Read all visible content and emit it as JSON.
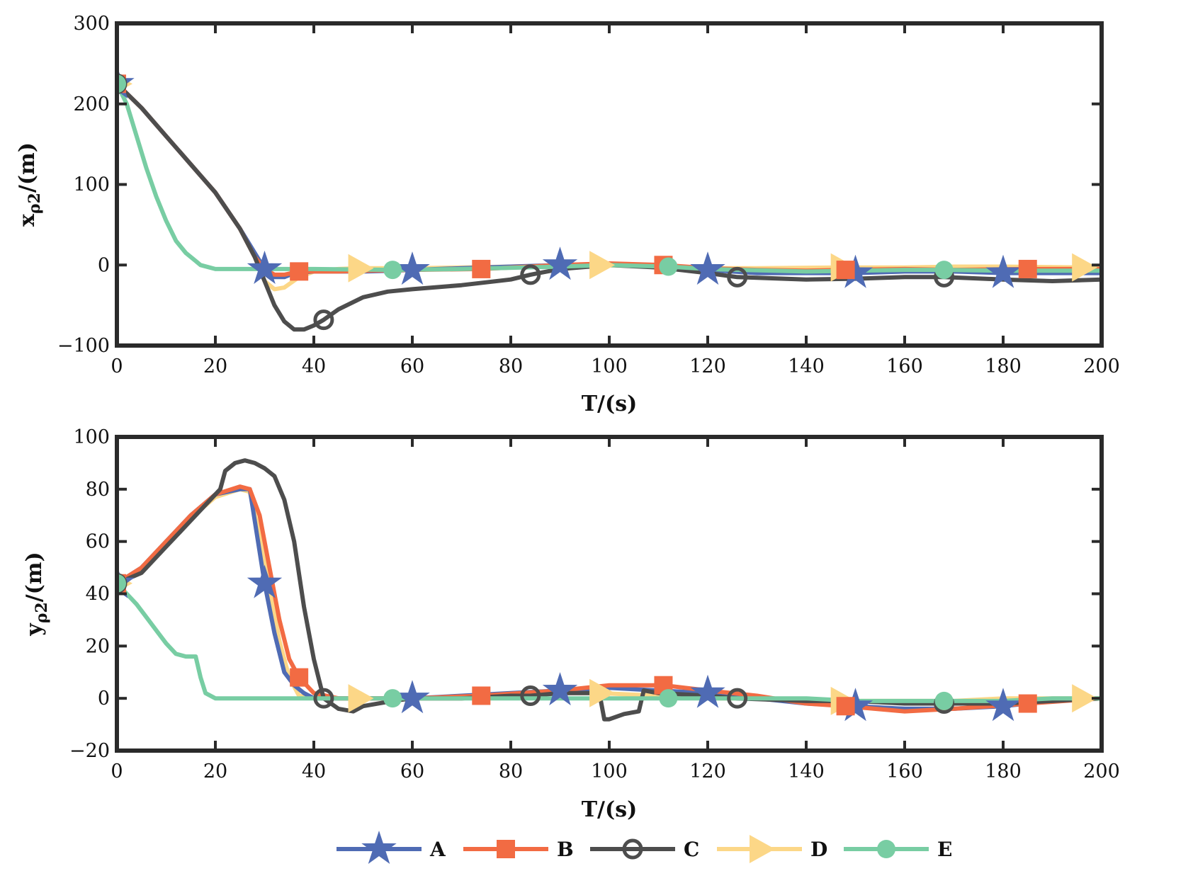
{
  "chart_data": [
    {
      "type": "line",
      "id": "top",
      "ylabel": "x_ρ2/(m)",
      "ylabel_main": "x",
      "ylabel_sub": "ρ2",
      "ylabel_tail": "/(m)",
      "xlabel": "T/(s)",
      "xlim": [
        0,
        200
      ],
      "ylim": [
        -100,
        300
      ],
      "xticks": [
        0,
        20,
        40,
        60,
        80,
        100,
        120,
        140,
        160,
        180,
        200
      ],
      "yticks": [
        -100,
        0,
        100,
        200,
        300
      ],
      "xtick_labels": [
        "0",
        "20",
        "40",
        "60",
        "80",
        "100",
        "120",
        "140",
        "160",
        "180",
        "200"
      ],
      "ytick_labels": [
        "−100",
        "0",
        "100",
        "200",
        "300"
      ],
      "series": [
        {
          "name": "A",
          "marker_x": [
            0,
            30,
            60,
            90,
            120,
            150,
            180
          ],
          "x": [
            0,
            5,
            10,
            15,
            20,
            25,
            28,
            30,
            32,
            34,
            36,
            40,
            45,
            50,
            56,
            60,
            70,
            80,
            90,
            100,
            110,
            120,
            130,
            140,
            150,
            160,
            170,
            180,
            190,
            200
          ],
          "y": [
            225,
            195,
            160,
            125,
            90,
            45,
            15,
            -5,
            -15,
            -15,
            -10,
            -8,
            -8,
            -8,
            -7,
            -6,
            -4,
            -2,
            0,
            0,
            -2,
            -6,
            -10,
            -10,
            -10,
            -8,
            -8,
            -10,
            -10,
            -10
          ]
        },
        {
          "name": "B",
          "marker_x": [
            0,
            37,
            74,
            111,
            148,
            185
          ],
          "x": [
            0,
            5,
            10,
            15,
            20,
            25,
            28,
            30,
            32,
            34,
            37,
            40,
            45,
            50,
            60,
            74,
            90,
            100,
            111,
            120,
            130,
            140,
            148,
            160,
            170,
            185,
            200
          ],
          "y": [
            225,
            195,
            160,
            125,
            90,
            45,
            10,
            -5,
            -12,
            -12,
            -8,
            -8,
            -8,
            -7,
            -6,
            -5,
            0,
            2,
            0,
            -4,
            -6,
            -7,
            -6,
            -5,
            -6,
            -5,
            -5
          ]
        },
        {
          "name": "C",
          "marker_x": [
            0,
            42,
            84,
            126,
            168
          ],
          "x": [
            0,
            5,
            10,
            15,
            20,
            25,
            28,
            30,
            32,
            34,
            36,
            38,
            40,
            42,
            45,
            50,
            55,
            60,
            70,
            80,
            84,
            90,
            100,
            110,
            120,
            126,
            140,
            150,
            160,
            168,
            180,
            190,
            200
          ],
          "y": [
            225,
            195,
            160,
            125,
            90,
            45,
            10,
            -20,
            -50,
            -70,
            -80,
            -80,
            -75,
            -68,
            -55,
            -40,
            -33,
            -30,
            -25,
            -18,
            -12,
            -5,
            0,
            -3,
            -10,
            -15,
            -18,
            -17,
            -15,
            -15,
            -18,
            -20,
            -18
          ]
        },
        {
          "name": "D",
          "marker_x": [
            0,
            49,
            98,
            147,
            196
          ],
          "x": [
            0,
            5,
            10,
            15,
            20,
            25,
            28,
            30,
            32,
            34,
            37,
            40,
            45,
            49,
            60,
            70,
            80,
            98,
            110,
            120,
            130,
            147,
            160,
            170,
            180,
            196,
            200
          ],
          "y": [
            225,
            195,
            160,
            125,
            90,
            45,
            10,
            -20,
            -30,
            -28,
            -15,
            -8,
            -5,
            -4,
            -4,
            -3,
            -2,
            0,
            -2,
            -4,
            -4,
            -3,
            -3,
            -2,
            -2,
            -3,
            -3
          ]
        },
        {
          "name": "E",
          "marker_x": [
            0,
            56,
            112,
            168
          ],
          "x": [
            0,
            2,
            4,
            6,
            8,
            10,
            12,
            14,
            16,
            17,
            20,
            30,
            40,
            56,
            70,
            90,
            100,
            112,
            120,
            140,
            160,
            168,
            180,
            200
          ],
          "y": [
            225,
            200,
            160,
            120,
            85,
            55,
            30,
            15,
            5,
            0,
            -5,
            -5,
            -5,
            -6,
            -5,
            -2,
            0,
            -2,
            -5,
            -8,
            -6,
            -6,
            -7,
            -7
          ]
        }
      ]
    },
    {
      "type": "line",
      "id": "bottom",
      "ylabel": "y_ρ2/(m)",
      "ylabel_main": "y",
      "ylabel_sub": "ρ2",
      "ylabel_tail": "/(m)",
      "xlabel": "T/(s)",
      "xlim": [
        0,
        200
      ],
      "ylim": [
        -20,
        100
      ],
      "xticks": [
        0,
        20,
        40,
        60,
        80,
        100,
        120,
        140,
        160,
        180,
        200
      ],
      "yticks": [
        -20,
        0,
        20,
        40,
        60,
        80,
        100
      ],
      "xtick_labels": [
        "0",
        "20",
        "40",
        "60",
        "80",
        "100",
        "120",
        "140",
        "160",
        "180",
        "200"
      ],
      "ytick_labels": [
        "−20",
        "0",
        "20",
        "40",
        "60",
        "80",
        "100"
      ],
      "series": [
        {
          "name": "A",
          "marker_x": [
            0,
            30,
            60,
            90,
            120,
            150,
            180
          ],
          "x": [
            0,
            5,
            10,
            15,
            20,
            25,
            27,
            30,
            32,
            34,
            36,
            38,
            40,
            45,
            50,
            60,
            70,
            80,
            90,
            100,
            110,
            120,
            130,
            140,
            150,
            160,
            170,
            180,
            190,
            200
          ],
          "y": [
            44,
            50,
            60,
            70,
            78,
            80,
            80,
            44,
            25,
            10,
            5,
            2,
            0,
            0,
            0,
            0,
            1,
            2,
            3,
            4,
            3,
            2,
            0,
            -2,
            -3,
            -4,
            -4,
            -3,
            -1,
            0
          ]
        },
        {
          "name": "B",
          "marker_x": [
            0,
            37,
            74,
            111,
            148,
            185
          ],
          "x": [
            0,
            5,
            10,
            15,
            20,
            25,
            27,
            29,
            31,
            33,
            35,
            37,
            40,
            45,
            50,
            60,
            74,
            90,
            100,
            111,
            120,
            130,
            140,
            148,
            160,
            170,
            185,
            200
          ],
          "y": [
            44,
            50,
            60,
            70,
            78,
            81,
            80,
            70,
            50,
            30,
            15,
            8,
            2,
            0,
            0,
            0,
            1,
            3,
            5,
            5,
            3,
            1,
            -2,
            -3,
            -5,
            -4,
            -2,
            0
          ]
        },
        {
          "name": "C",
          "marker_x": [
            0,
            42,
            84,
            126,
            168
          ],
          "x": [
            0,
            5,
            10,
            15,
            20,
            21,
            22,
            24,
            26,
            28,
            30,
            32,
            34,
            36,
            38,
            40,
            42,
            45,
            48,
            50,
            56,
            60,
            70,
            80,
            84,
            90,
            98,
            99,
            100,
            103,
            106,
            107,
            110,
            120,
            126,
            140,
            150,
            160,
            168,
            180,
            190,
            200
          ],
          "y": [
            44,
            48,
            58,
            68,
            78,
            80,
            87,
            90,
            91,
            90,
            88,
            85,
            76,
            60,
            35,
            15,
            0,
            -4,
            -5,
            -3,
            -1,
            0,
            0,
            1,
            1,
            2,
            2,
            -8,
            -8,
            -6,
            -5,
            3,
            2,
            1,
            0,
            -1,
            -1,
            -2,
            -2,
            -2,
            -1,
            0
          ]
        },
        {
          "name": "D",
          "marker_x": [
            0,
            49,
            98,
            147,
            196
          ],
          "x": [
            0,
            5,
            10,
            15,
            20,
            25,
            27,
            29,
            31,
            33,
            35,
            37,
            40,
            45,
            49,
            60,
            70,
            80,
            90,
            98,
            110,
            120,
            130,
            147,
            160,
            170,
            180,
            196,
            200
          ],
          "y": [
            44,
            49,
            59,
            69,
            77,
            80,
            79,
            62,
            42,
            22,
            8,
            1,
            0,
            0,
            0,
            0,
            0,
            1,
            2,
            2,
            1,
            0,
            0,
            -1,
            -1,
            -1,
            0,
            0,
            0
          ]
        },
        {
          "name": "E",
          "marker_x": [
            0,
            56,
            112,
            168
          ],
          "x": [
            0,
            2,
            4,
            6,
            8,
            10,
            12,
            14,
            16,
            17,
            18,
            20,
            22,
            30,
            40,
            56,
            70,
            80,
            90,
            100,
            112,
            120,
            130,
            140,
            150,
            160,
            168,
            180,
            190,
            200
          ],
          "y": [
            44,
            40,
            36,
            31,
            26,
            21,
            17,
            16,
            16,
            8,
            2,
            0,
            0,
            0,
            0,
            0,
            0,
            0,
            0,
            0,
            0,
            0,
            0,
            0,
            -1,
            -1,
            -1,
            -1,
            0,
            0
          ]
        }
      ]
    }
  ],
  "legend": [
    {
      "name": "A",
      "label": "A",
      "color": "#4f6bb4",
      "marker": "star"
    },
    {
      "name": "B",
      "label": "B",
      "color": "#f26b43",
      "marker": "square"
    },
    {
      "name": "C",
      "label": "C",
      "color": "#4d4d4d",
      "marker": "circle"
    },
    {
      "name": "D",
      "label": "D",
      "color": "#fcd787",
      "marker": "triangle-right"
    },
    {
      "name": "E",
      "label": "E",
      "color": "#78cda3",
      "marker": "filled-circle"
    }
  ]
}
